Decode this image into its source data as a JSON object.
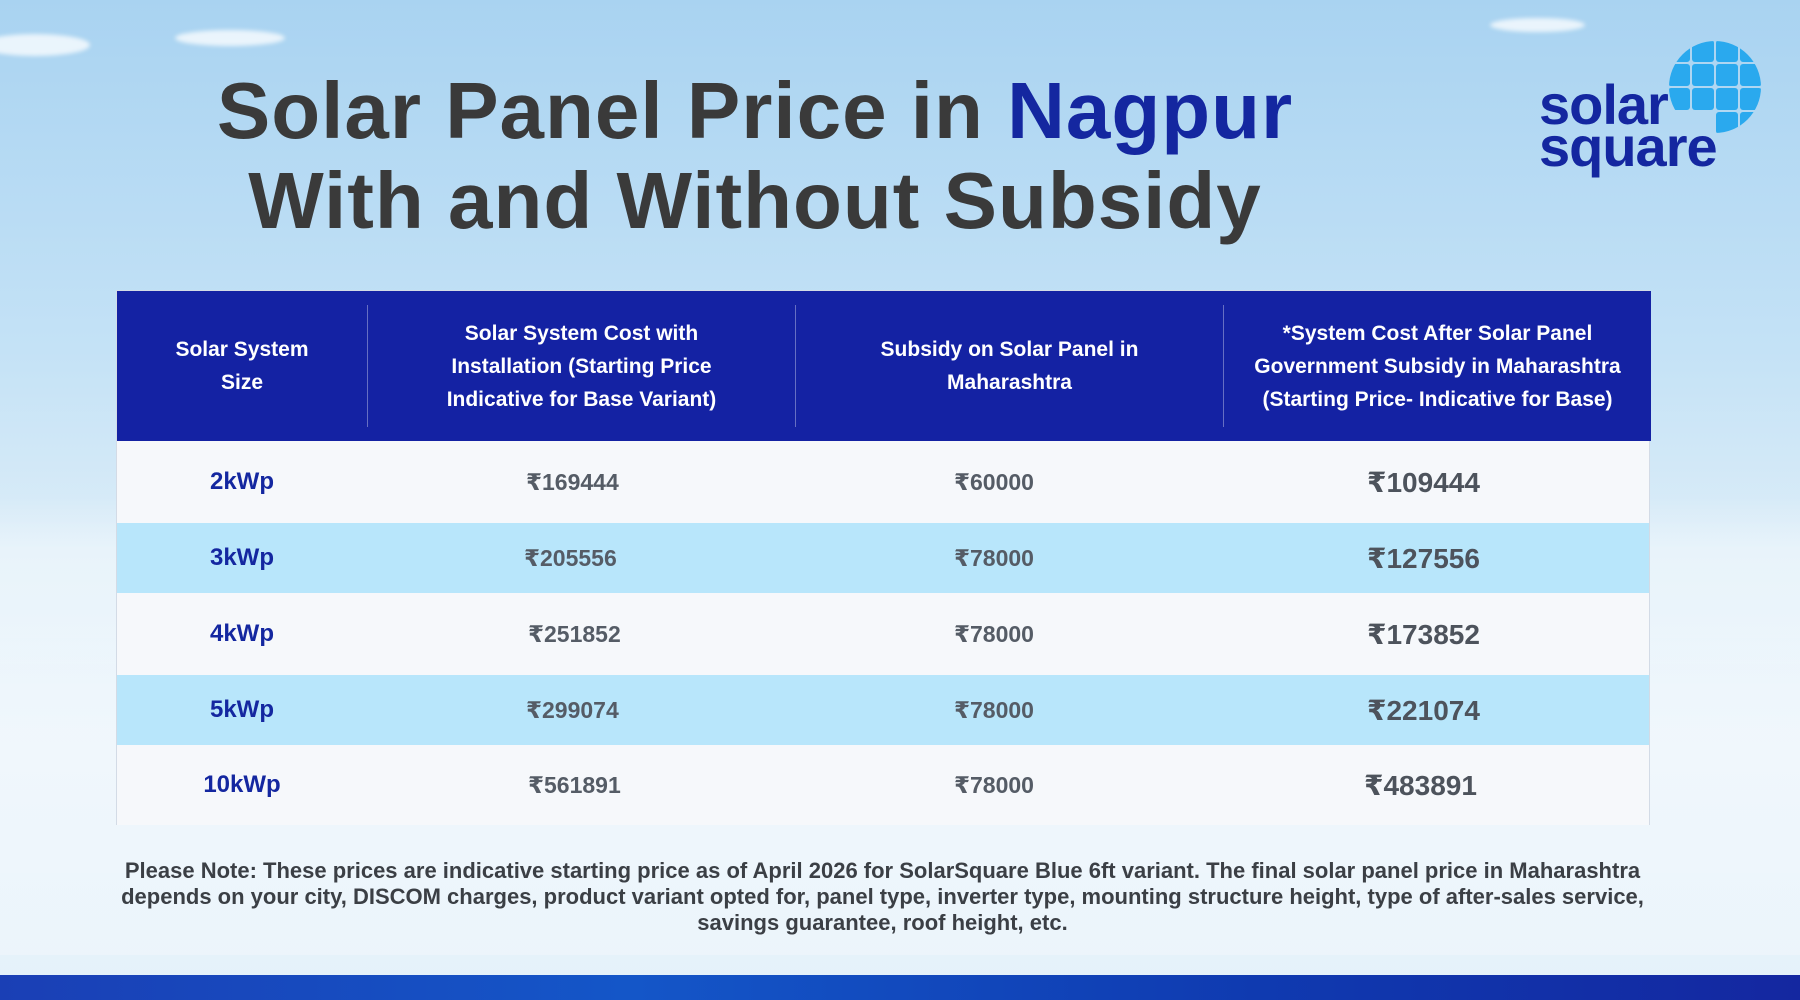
{
  "title": {
    "line1_prefix": "Solar Panel Price in ",
    "line1_accent": "Nagpur",
    "line2": "With and Without Subsidy"
  },
  "logo": {
    "line1": "solar",
    "line2": "square",
    "grid_icon": "sun-grid-icon",
    "color": "#1427a0",
    "grid_color": "#2aa9ee"
  },
  "colors": {
    "header_bg": "#1422a3",
    "row_alt_bg": "#b8e6fb",
    "accent": "#1427a0"
  },
  "table": {
    "headers": [
      "Solar System Size",
      "Solar System Cost with Installation (Starting Price Indicative for Base Variant)",
      "Subsidy on Solar Panel in Maharashtra",
      "*System Cost After Solar Panel Government Subsidy in Maharashtra (Starting Price- Indicative for Base)"
    ],
    "rows": [
      {
        "size": "2kWp",
        "cost": "₹169444",
        "subsidy": "₹60000",
        "after": "₹109444"
      },
      {
        "size": "3kWp",
        "cost": "₹205556",
        "subsidy": "₹78000",
        "after": "₹127556"
      },
      {
        "size": "4kWp",
        "cost": "₹251852",
        "subsidy": "₹78000",
        "after": "₹173852"
      },
      {
        "size": "5kWp",
        "cost": "₹299074",
        "subsidy": "₹78000",
        "after": "₹221074"
      },
      {
        "size": "10kWp",
        "cost": "₹561891",
        "subsidy": "₹78000",
        "after": "₹483891"
      }
    ]
  },
  "note": "Please Note: These prices are indicative starting price as of April 2026 for SolarSquare Blue 6ft variant. The final solar panel price in Maharashtra depends on your city, DISCOM charges, product variant opted for, panel type, inverter type, mounting structure height, type of after-sales service, savings guarantee, roof height, etc."
}
